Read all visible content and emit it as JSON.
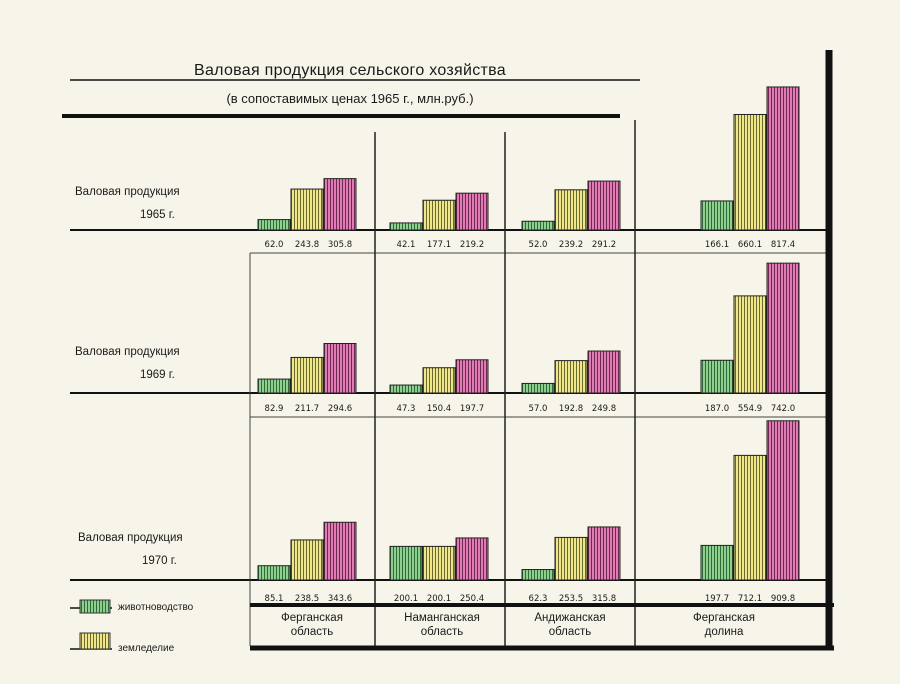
{
  "chart_data": {
    "type": "bar",
    "title": "Валовая продукция сельского хозяйства",
    "subtitle": "(в сопоставимых ценах 1965 г., млн.руб.)",
    "value_unit": "млн.руб.",
    "categories": [
      {
        "name": "Ферганская область",
        "lines": [
          "Ферганская",
          "область"
        ]
      },
      {
        "name": "Наманганская область",
        "lines": [
          "Наманганская",
          "область"
        ]
      },
      {
        "name": "Андижанская область",
        "lines": [
          "Андижанская",
          "область"
        ]
      },
      {
        "name": "Ферганская долина",
        "lines": [
          "Ферганская",
          "долина"
        ]
      }
    ],
    "legend": [
      {
        "name": "животноводство",
        "color": "#8fd08f"
      },
      {
        "name": "земледелие",
        "color": "#f0e68c"
      }
    ],
    "third_series_color": "#e07bb4",
    "panels": [
      {
        "label": "Валовая продукция",
        "year": "1965 г.",
        "groups": [
          {
            "values": [
              62.0,
              243.8,
              305.8
            ],
            "labels": [
              "62.0",
              "243.8",
              "305.8"
            ]
          },
          {
            "values": [
              42.1,
              177.1,
              219.2
            ],
            "labels": [
              "42.1",
              "177.1",
              "219.2"
            ]
          },
          {
            "values": [
              52.0,
              239.2,
              291.2
            ],
            "labels": [
              "52.0",
              "239.2",
              "291.2"
            ]
          },
          {
            "values": [
              166.1,
              660.1,
              817.4
            ],
            "labels": [
              "166.1",
              "660.1",
              "817.4"
            ]
          }
        ]
      },
      {
        "label": "Валовая продукция",
        "year": "1969 г.",
        "groups": [
          {
            "values": [
              82.9,
              211.7,
              294.6
            ],
            "labels": [
              "82.9",
              "211.7",
              "294.6"
            ]
          },
          {
            "values": [
              47.3,
              150.4,
              197.7
            ],
            "labels": [
              "47.3",
              "150.4",
              "197.7"
            ]
          },
          {
            "values": [
              57.0,
              192.8,
              249.8
            ],
            "labels": [
              "57.0",
              "192.8",
              "249.8"
            ]
          },
          {
            "values": [
              187.0,
              554.9,
              742.0
            ],
            "labels": [
              "187.0",
              "554.9",
              "742.0"
            ]
          }
        ]
      },
      {
        "label": "Валовая продукция",
        "year": "1970 г.",
        "groups": [
          {
            "values": [
              85.1,
              238.5,
              343.6
            ],
            "labels": [
              "85.1",
              "238.5",
              "343.6"
            ]
          },
          {
            "values": [
              200.1,
              200.1,
              250.4
            ],
            "labels": [
              "200.1",
              "200.1",
              "250.4"
            ]
          },
          {
            "values": [
              62.3,
              253.5,
              315.8
            ],
            "labels": [
              "62.3",
              "253.5",
              "315.8"
            ]
          },
          {
            "values": [
              197.7,
              712.1,
              909.8
            ],
            "labels": [
              "197.7",
              "712.1",
              "909.8"
            ]
          }
        ]
      }
    ]
  }
}
